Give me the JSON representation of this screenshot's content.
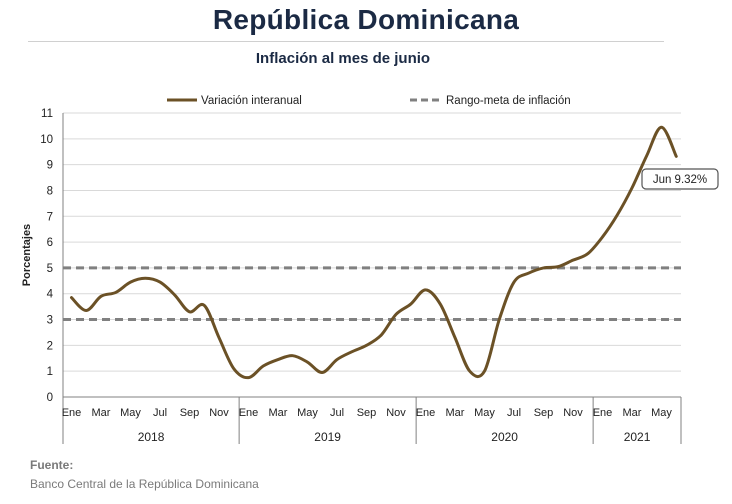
{
  "title": "República Dominicana",
  "subtitle": "Inflación al mes de junio",
  "source_label": "Fuente:",
  "source_text": "Banco Central de la República Dominicana",
  "colors": {
    "series": "#6b5126",
    "target": "#808080",
    "title": "#1b2a44",
    "grid": "#d9d9d9"
  },
  "chart_data": {
    "type": "line",
    "ylabel": "Porcentajes",
    "ylim": [
      0,
      11
    ],
    "yticks": [
      0,
      1,
      2,
      3,
      4,
      5,
      6,
      7,
      8,
      9,
      10,
      11
    ],
    "month_ticks": [
      "Ene",
      "Mar",
      "May",
      "Jul",
      "Sep",
      "Nov",
      "Ene",
      "Mar",
      "May",
      "Jul",
      "Sep",
      "Nov",
      "Ene",
      "Mar",
      "May",
      "Jul",
      "Sep",
      "Nov",
      "Ene",
      "Mar",
      "May"
    ],
    "years": [
      "2018",
      "2019",
      "2020",
      "2021"
    ],
    "legend": {
      "series": "Variación interanual",
      "target": "Rango-meta de inflación",
      "position": "top"
    },
    "series": [
      {
        "name": "Variación interanual",
        "start": "2018-01",
        "values": [
          3.85,
          3.35,
          3.9,
          4.05,
          4.45,
          4.6,
          4.45,
          3.95,
          3.3,
          3.55,
          2.3,
          1.1,
          0.75,
          1.2,
          1.45,
          1.6,
          1.35,
          0.95,
          1.45,
          1.75,
          2.0,
          2.4,
          3.2,
          3.6,
          4.15,
          3.6,
          2.3,
          1.0,
          1.0,
          3.0,
          4.45,
          4.8,
          5.0,
          5.05,
          5.3,
          5.55,
          6.2,
          7.05,
          8.1,
          9.35,
          10.45,
          9.32
        ]
      }
    ],
    "target_range": [
      3,
      5
    ],
    "annotation": "Jun 9.32%"
  }
}
